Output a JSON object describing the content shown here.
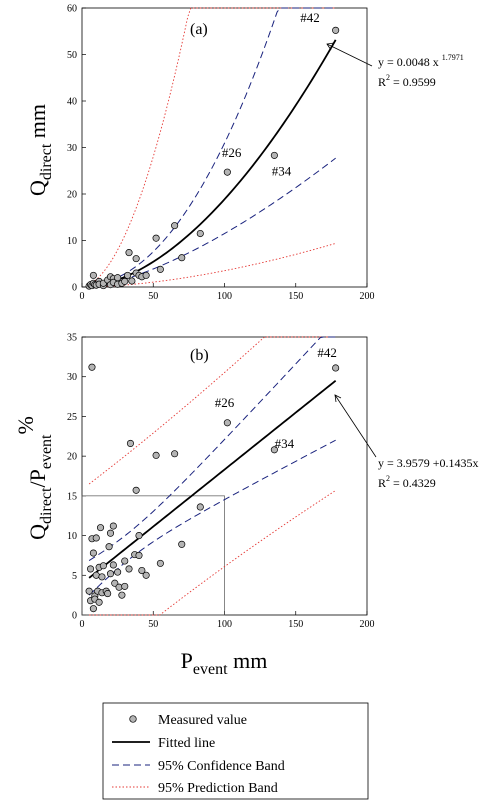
{
  "chart_data": [
    {
      "type": "scatter",
      "panel_label": "(a)",
      "ylabel_main": "Q",
      "ylabel_sub": "direct",
      "ylabel_unit": " mm",
      "xlim": [
        0,
        200
      ],
      "ylim": [
        0,
        60
      ],
      "xticks": [
        0,
        50,
        100,
        150,
        200
      ],
      "yticks": [
        0,
        10,
        20,
        30,
        40,
        50,
        60
      ],
      "equation_main": "y = 0.0048 x",
      "equation_exp": "1.7971",
      "r2_prefix": "R",
      "r2_exp": "2",
      "r2_value": " = 0.9599",
      "fit": {
        "form": "power",
        "a": 0.0048,
        "b": 1.7971
      },
      "annotations": [
        {
          "text": "#42",
          "x": 160,
          "y": 57
        },
        {
          "text": "#26",
          "x": 105,
          "y": 28
        },
        {
          "text": "#34",
          "x": 140,
          "y": 24
        }
      ],
      "points": [
        [
          5,
          0.2
        ],
        [
          6,
          0.5
        ],
        [
          7,
          0.3
        ],
        [
          8,
          0.8
        ],
        [
          8,
          2.5
        ],
        [
          9,
          0.5
        ],
        [
          10,
          0.4
        ],
        [
          12,
          1.2
        ],
        [
          12,
          0.6
        ],
        [
          15,
          0.3
        ],
        [
          15,
          0.8
        ],
        [
          18,
          1.5
        ],
        [
          20,
          0.5
        ],
        [
          20,
          2.2
        ],
        [
          22,
          1.8
        ],
        [
          22,
          1.0
        ],
        [
          25,
          0.6
        ],
        [
          25,
          2.0
        ],
        [
          28,
          0.8
        ],
        [
          30,
          1.2
        ],
        [
          32,
          2.5
        ],
        [
          33,
          7.4
        ],
        [
          35,
          1.3
        ],
        [
          38,
          6.1
        ],
        [
          38,
          3.0
        ],
        [
          40,
          2.5
        ],
        [
          42,
          2.2
        ],
        [
          45,
          2.5
        ],
        [
          52,
          10.5
        ],
        [
          55,
          3.8
        ],
        [
          65,
          13.2
        ],
        [
          70,
          6.3
        ],
        [
          83,
          11.5
        ],
        [
          102,
          24.7
        ],
        [
          135,
          28.3
        ],
        [
          178,
          55.2
        ]
      ]
    },
    {
      "type": "scatter",
      "panel_label": "(b)",
      "ylabel_main": "Q",
      "ylabel_sub": "direct",
      "ylabel_slash": "/P",
      "ylabel_sub2": "event",
      "ylabel_unit": "%",
      "xlabel_main": "P",
      "xlabel_sub": "event",
      "xlabel_unit": " mm",
      "xlim": [
        0,
        200
      ],
      "ylim": [
        0,
        35
      ],
      "xticks": [
        0,
        50,
        100,
        150,
        200
      ],
      "yticks": [
        0,
        5,
        10,
        15,
        20,
        25,
        30,
        35
      ],
      "equation_main": "y = 3.9579 +0.1435x",
      "r2_prefix": "R",
      "r2_exp": "2",
      "r2_value": " = 0.4329",
      "fit": {
        "form": "linear",
        "intercept": 3.9579,
        "slope": 0.1435
      },
      "annotations": [
        {
          "text": "#42",
          "x": 172,
          "y": 32.5
        },
        {
          "text": "#26",
          "x": 100,
          "y": 26.2
        },
        {
          "text": "#34",
          "x": 142,
          "y": 21.0
        }
      ],
      "points": [
        [
          5,
          3.0
        ],
        [
          6,
          1.8
        ],
        [
          6,
          5.8
        ],
        [
          7,
          9.6
        ],
        [
          7,
          31.2
        ],
        [
          8,
          7.8
        ],
        [
          8,
          0.8
        ],
        [
          9,
          2.4
        ],
        [
          9,
          2.0
        ],
        [
          10,
          9.7
        ],
        [
          10,
          5.0
        ],
        [
          11,
          3.0
        ],
        [
          12,
          1.6
        ],
        [
          12,
          6.0
        ],
        [
          13,
          11.0
        ],
        [
          14,
          4.8
        ],
        [
          14,
          2.8
        ],
        [
          15,
          6.2
        ],
        [
          17,
          3.0
        ],
        [
          18,
          2.7
        ],
        [
          19,
          8.6
        ],
        [
          20,
          10.3
        ],
        [
          20,
          5.2
        ],
        [
          22,
          6.3
        ],
        [
          22,
          11.2
        ],
        [
          23,
          4.0
        ],
        [
          25,
          5.4
        ],
        [
          26,
          3.5
        ],
        [
          28,
          2.5
        ],
        [
          30,
          6.8
        ],
        [
          30,
          3.6
        ],
        [
          33,
          5.8
        ],
        [
          34,
          21.6
        ],
        [
          37,
          7.6
        ],
        [
          38,
          15.7
        ],
        [
          40,
          7.5
        ],
        [
          40,
          10.0
        ],
        [
          42,
          5.6
        ],
        [
          45,
          5.0
        ],
        [
          52,
          20.1
        ],
        [
          55,
          6.5
        ],
        [
          65,
          20.3
        ],
        [
          70,
          8.9
        ],
        [
          83,
          13.6
        ],
        [
          102,
          24.2
        ],
        [
          135,
          20.8
        ],
        [
          178,
          31.1
        ]
      ],
      "rect_box": {
        "x": [
          0,
          100
        ],
        "y": [
          0,
          15
        ]
      }
    }
  ],
  "legend": {
    "items": [
      {
        "label": "Measured value",
        "kind": "point"
      },
      {
        "label": "Fitted line",
        "kind": "solid"
      },
      {
        "label": "95% Confidence Band",
        "kind": "dash"
      },
      {
        "label": "95% Prediction Band",
        "kind": "dot"
      }
    ]
  },
  "colors": {
    "point_fill": "#b4b4b4",
    "fit": "#000000",
    "confidence": "#1a237e",
    "prediction": "#e53935"
  }
}
